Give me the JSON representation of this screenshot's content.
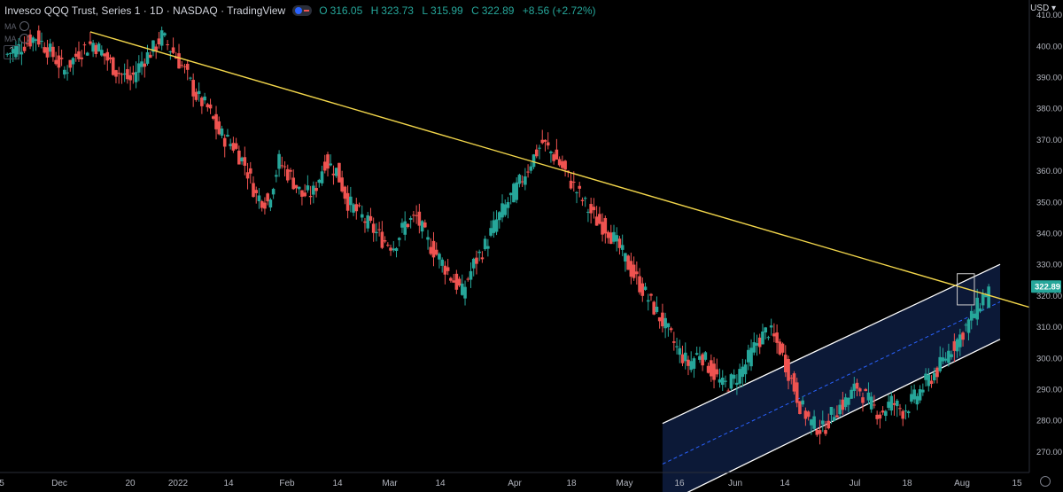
{
  "header": {
    "title": "Invesco QQQ Trust, Series 1 · 1D · NASDAQ · TradingView",
    "open_label": "O",
    "open": "316.05",
    "high_label": "H",
    "high": "323.73",
    "low_label": "L",
    "low": "315.99",
    "close_label": "C",
    "close": "322.89",
    "change": "+8.56 (+2.72%)"
  },
  "indicators": [
    "MA",
    "MA"
  ],
  "currency": "USD",
  "colors": {
    "up": "#26a69a",
    "down": "#ef5350",
    "trendline": "#f2d64b",
    "channel_line": "#ffffff",
    "channel_fill": "#0d1a3a",
    "price_badge": "#26a69a"
  },
  "chart_data": {
    "type": "candlestick",
    "title": "Invesco QQQ Trust, Series 1 · 1D · NASDAQ",
    "y_axis": {
      "ticks": [
        270,
        280,
        290,
        300,
        310,
        320,
        330,
        340,
        350,
        360,
        370,
        380,
        390,
        400,
        410
      ],
      "tick_labels": [
        "270.00",
        "280.00",
        "290.00",
        "300.00",
        "310.00",
        "320.00",
        "330.00",
        "340.00",
        "350.00",
        "360.00",
        "370.00",
        "380.00",
        "390.00",
        "400.00",
        "410.00"
      ],
      "ylim": [
        265,
        413
      ]
    },
    "x_axis": {
      "tick_labels": [
        "5",
        "Dec",
        "20",
        "2022",
        "14",
        "Feb",
        "14",
        "Mar",
        "14",
        "Apr",
        "18",
        "May",
        "16",
        "Jun",
        "14",
        "Jul",
        "18",
        "Aug",
        "15"
      ]
    },
    "last_price": "322.89",
    "close_path": [
      [
        0,
        397
      ],
      [
        6,
        400
      ],
      [
        11,
        403
      ],
      [
        16,
        398
      ],
      [
        21,
        392
      ],
      [
        26,
        398
      ],
      [
        31,
        401
      ],
      [
        34,
        398
      ],
      [
        39,
        392
      ],
      [
        44,
        389
      ],
      [
        48,
        395
      ],
      [
        52,
        399
      ],
      [
        55,
        403
      ],
      [
        59,
        398
      ],
      [
        63,
        392
      ],
      [
        67,
        384
      ],
      [
        71,
        380
      ],
      [
        75,
        372
      ],
      [
        80,
        368
      ],
      [
        84,
        362
      ],
      [
        88,
        352
      ],
      [
        92,
        350
      ],
      [
        96,
        363
      ],
      [
        100,
        358
      ],
      [
        104,
        352
      ],
      [
        108,
        353
      ],
      [
        112,
        363
      ],
      [
        116,
        360
      ],
      [
        120,
        350
      ],
      [
        124,
        346
      ],
      [
        128,
        342
      ],
      [
        132,
        338
      ],
      [
        136,
        336
      ],
      [
        140,
        343
      ],
      [
        144,
        345
      ],
      [
        148,
        337
      ],
      [
        152,
        332
      ],
      [
        156,
        326
      ],
      [
        160,
        321
      ],
      [
        164,
        330
      ],
      [
        168,
        336
      ],
      [
        172,
        344
      ],
      [
        176,
        350
      ],
      [
        180,
        356
      ],
      [
        184,
        363
      ],
      [
        188,
        369
      ],
      [
        191,
        366
      ],
      [
        195,
        361
      ],
      [
        199,
        355
      ],
      [
        203,
        349
      ],
      [
        207,
        344
      ],
      [
        211,
        341
      ],
      [
        215,
        335
      ],
      [
        219,
        328
      ],
      [
        223,
        322
      ],
      [
        227,
        316
      ],
      [
        231,
        310
      ],
      [
        235,
        303
      ],
      [
        239,
        298
      ],
      [
        243,
        302
      ],
      [
        247,
        296
      ],
      [
        251,
        291
      ],
      [
        255,
        293
      ],
      [
        259,
        298
      ],
      [
        263,
        305
      ],
      [
        267,
        309
      ],
      [
        271,
        303
      ],
      [
        275,
        293
      ],
      [
        278,
        285
      ],
      [
        282,
        279
      ],
      [
        286,
        277
      ],
      [
        290,
        283
      ],
      [
        294,
        286
      ],
      [
        298,
        291
      ],
      [
        302,
        286
      ],
      [
        306,
        282
      ],
      [
        310,
        286
      ],
      [
        314,
        283
      ],
      [
        318,
        287
      ],
      [
        322,
        292
      ],
      [
        326,
        296
      ],
      [
        330,
        302
      ],
      [
        334,
        307
      ],
      [
        338,
        313
      ],
      [
        341,
        318
      ],
      [
        344,
        322.89
      ]
    ],
    "trendline": {
      "start": [
        30,
        404.5
      ],
      "end": [
        348,
        319
      ]
    },
    "channel": {
      "upper": {
        "start": [
          230,
          279
        ],
        "end": [
          348,
          330
        ]
      },
      "mid": {
        "start": [
          230,
          266
        ],
        "end": [
          348,
          318
        ]
      },
      "lower": {
        "start": [
          230,
          253
        ],
        "end": [
          348,
          306
        ]
      }
    },
    "highlight_box": {
      "x_range": [
        333,
        339
      ],
      "y_range": [
        317,
        327
      ]
    },
    "grid": false,
    "legend": "none"
  }
}
